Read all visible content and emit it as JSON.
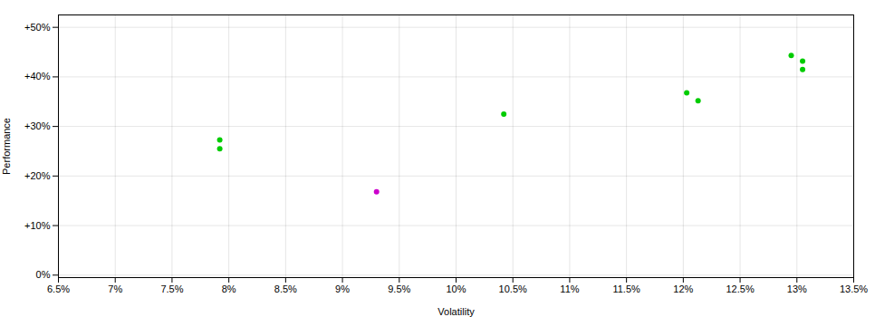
{
  "chart_data": {
    "type": "scatter",
    "xlabel": "Volatility",
    "ylabel": "Performance",
    "x": [
      0.0792,
      0.0792,
      0.093,
      0.1042,
      0.1203,
      0.1213,
      0.1295,
      0.1305,
      0.1305
    ],
    "values": [
      0.273,
      0.255,
      0.168,
      0.325,
      0.368,
      0.352,
      0.443,
      0.432,
      0.415
    ],
    "colors": [
      "#00cc00",
      "#00cc00",
      "#cc00cc",
      "#00cc00",
      "#00cc00",
      "#00cc00",
      "#00cc00",
      "#00cc00",
      "#00cc00"
    ],
    "xlim": [
      0.065,
      0.135
    ],
    "ylim": [
      -0.005,
      0.525
    ],
    "xticks": [
      {
        "value": 0.065,
        "label": "6.5%"
      },
      {
        "value": 0.07,
        "label": "7%"
      },
      {
        "value": 0.075,
        "label": "7.5%"
      },
      {
        "value": 0.08,
        "label": "8%"
      },
      {
        "value": 0.085,
        "label": "8.5%"
      },
      {
        "value": 0.09,
        "label": "9%"
      },
      {
        "value": 0.095,
        "label": "9.5%"
      },
      {
        "value": 0.1,
        "label": "10%"
      },
      {
        "value": 0.105,
        "label": "10.5%"
      },
      {
        "value": 0.11,
        "label": "11%"
      },
      {
        "value": 0.115,
        "label": "11.5%"
      },
      {
        "value": 0.12,
        "label": "12%"
      },
      {
        "value": 0.125,
        "label": "12.5%"
      },
      {
        "value": 0.13,
        "label": "13%"
      },
      {
        "value": 0.135,
        "label": "13.5%"
      }
    ],
    "yticks": [
      {
        "value": 0.0,
        "label": "0%"
      },
      {
        "value": 0.1,
        "label": "+10%"
      },
      {
        "value": 0.2,
        "label": "+20%"
      },
      {
        "value": 0.3,
        "label": "+30%"
      },
      {
        "value": 0.4,
        "label": "+40%"
      },
      {
        "value": 0.5,
        "label": "+50%"
      }
    ],
    "grid": true
  }
}
